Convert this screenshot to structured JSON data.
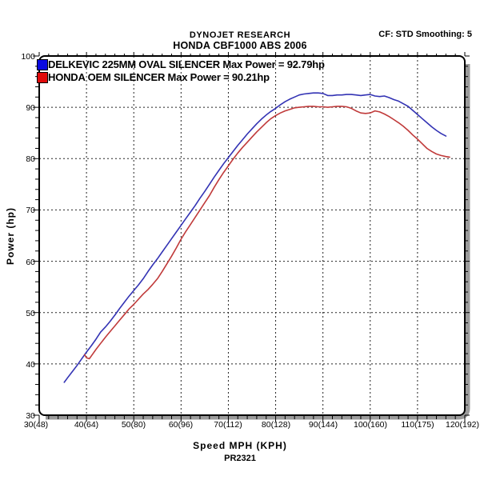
{
  "header": {
    "title_line1": "DYNOJET RESEARCH",
    "title_line2": "HONDA CBF1000 ABS 2006",
    "right_info": "CF: STD  Smoothing: 5"
  },
  "chart_data": {
    "type": "line",
    "title": "HONDA CBF1000 ABS 2006",
    "xlabel": "Speed MPH (KPH)",
    "ylabel": "Power (hp)",
    "annotation": "PR2321",
    "xlim": [
      30,
      120
    ],
    "ylim": [
      30,
      100
    ],
    "grid": "dashed lines at every major tick, minor ticks every 2 units on axes",
    "legend_position": "top-left inside plot",
    "x_tick_labels": [
      "30(48)",
      "40(64)",
      "50(80)",
      "60(96)",
      "70(112)",
      "80(128)",
      "90(144)",
      "100(160)",
      "110(175)",
      "120(192)"
    ],
    "y_tick_labels": [
      "100",
      "90",
      "80",
      "70",
      "60",
      "50",
      "40",
      "30"
    ],
    "series": [
      {
        "id": "delkevic-curve",
        "name": "DELKEVIC 225MM OVAL SILENCER",
        "legend_label": "DELKEVIC 225MM OVAL SILENCER Max Power = 92.79hp",
        "max_power_hp": 92.79,
        "color": "#3333b4",
        "swatch_color": "#0a0ae0",
        "points": [
          [
            35.3,
            36.4
          ],
          [
            36,
            37.3
          ],
          [
            37,
            38.5
          ],
          [
            38,
            39.7
          ],
          [
            39,
            41.0
          ],
          [
            40,
            42.3
          ],
          [
            41,
            43.5
          ],
          [
            42,
            44.8
          ],
          [
            43,
            46.2
          ],
          [
            44,
            47.2
          ],
          [
            45,
            48.3
          ],
          [
            46,
            49.5
          ],
          [
            47,
            50.8
          ],
          [
            48,
            52.0
          ],
          [
            49,
            53.2
          ],
          [
            50,
            54.3
          ],
          [
            51,
            55.4
          ],
          [
            52,
            56.6
          ],
          [
            53,
            58.0
          ],
          [
            54,
            59.3
          ],
          [
            55,
            60.5
          ],
          [
            56,
            61.8
          ],
          [
            57,
            63.1
          ],
          [
            58,
            64.4
          ],
          [
            59,
            65.7
          ],
          [
            60,
            67.0
          ],
          [
            61,
            68.3
          ],
          [
            62,
            69.6
          ],
          [
            63,
            70.9
          ],
          [
            64,
            72.3
          ],
          [
            65,
            73.6
          ],
          [
            66,
            75.0
          ],
          [
            67,
            76.4
          ],
          [
            68,
            77.7
          ],
          [
            69,
            79.0
          ],
          [
            70,
            80.2
          ],
          [
            71,
            81.4
          ],
          [
            72,
            82.6
          ],
          [
            73,
            83.7
          ],
          [
            74,
            84.8
          ],
          [
            75,
            85.8
          ],
          [
            76,
            86.8
          ],
          [
            77,
            87.7
          ],
          [
            78,
            88.5
          ],
          [
            79,
            89.2
          ],
          [
            80,
            89.8
          ],
          [
            81,
            90.5
          ],
          [
            82,
            91.1
          ],
          [
            83,
            91.6
          ],
          [
            84,
            92.0
          ],
          [
            85,
            92.4
          ],
          [
            86,
            92.6
          ],
          [
            87,
            92.7
          ],
          [
            88,
            92.8
          ],
          [
            89,
            92.8
          ],
          [
            90,
            92.7
          ],
          [
            91,
            92.3
          ],
          [
            92,
            92.3
          ],
          [
            93,
            92.4
          ],
          [
            94,
            92.4
          ],
          [
            95,
            92.5
          ],
          [
            96,
            92.5
          ],
          [
            97,
            92.4
          ],
          [
            98,
            92.3
          ],
          [
            99,
            92.4
          ],
          [
            100,
            92.5
          ],
          [
            101,
            92.2
          ],
          [
            102,
            92.1
          ],
          [
            103,
            92.2
          ],
          [
            104,
            91.9
          ],
          [
            105,
            91.5
          ],
          [
            106,
            91.2
          ],
          [
            107,
            90.7
          ],
          [
            108,
            90.2
          ],
          [
            109,
            89.4
          ],
          [
            110,
            88.6
          ],
          [
            111,
            87.8
          ],
          [
            112,
            87.0
          ],
          [
            113,
            86.2
          ],
          [
            114,
            85.5
          ],
          [
            115,
            84.9
          ],
          [
            116,
            84.4
          ]
        ]
      },
      {
        "id": "honda-oem-curve",
        "name": "HONDA OEM SILENCER",
        "legend_label": "HONDA OEM SILENCER Max Power = 90.21hp",
        "max_power_hp": 90.21,
        "color": "#c03a3a",
        "swatch_color": "#e00a0a",
        "points": [
          [
            39.6,
            41.8
          ],
          [
            40,
            41.2
          ],
          [
            40.6,
            41.0
          ],
          [
            41,
            41.5
          ],
          [
            42,
            42.8
          ],
          [
            43,
            44.0
          ],
          [
            44,
            45.2
          ],
          [
            45,
            46.3
          ],
          [
            46,
            47.4
          ],
          [
            47,
            48.5
          ],
          [
            48,
            49.6
          ],
          [
            49,
            50.7
          ],
          [
            50,
            51.6
          ],
          [
            51,
            52.6
          ],
          [
            52,
            53.6
          ],
          [
            53,
            54.5
          ],
          [
            54,
            55.5
          ],
          [
            55,
            56.6
          ],
          [
            56,
            58.0
          ],
          [
            57,
            59.5
          ],
          [
            58,
            61.0
          ],
          [
            59,
            62.6
          ],
          [
            60,
            64.3
          ],
          [
            61,
            65.8
          ],
          [
            62,
            67.2
          ],
          [
            63,
            68.6
          ],
          [
            64,
            70.0
          ],
          [
            65,
            71.4
          ],
          [
            66,
            72.8
          ],
          [
            67,
            74.4
          ],
          [
            68,
            75.9
          ],
          [
            69,
            77.3
          ],
          [
            70,
            78.6
          ],
          [
            71,
            79.9
          ],
          [
            72,
            81.1
          ],
          [
            73,
            82.2
          ],
          [
            74,
            83.2
          ],
          [
            75,
            84.2
          ],
          [
            76,
            85.2
          ],
          [
            77,
            86.1
          ],
          [
            78,
            87.0
          ],
          [
            79,
            87.8
          ],
          [
            80,
            88.4
          ],
          [
            81,
            88.9
          ],
          [
            82,
            89.3
          ],
          [
            83,
            89.6
          ],
          [
            84,
            89.9
          ],
          [
            85,
            90.0
          ],
          [
            86,
            90.1
          ],
          [
            87,
            90.2
          ],
          [
            88,
            90.2
          ],
          [
            89,
            90.1
          ],
          [
            90,
            90.1
          ],
          [
            91,
            90.0
          ],
          [
            92,
            90.1
          ],
          [
            93,
            90.2
          ],
          [
            94,
            90.2
          ],
          [
            95,
            90.1
          ],
          [
            96,
            89.8
          ],
          [
            97,
            89.3
          ],
          [
            98,
            88.9
          ],
          [
            99,
            88.8
          ],
          [
            100,
            88.9
          ],
          [
            101,
            89.3
          ],
          [
            102,
            89.1
          ],
          [
            103,
            88.7
          ],
          [
            104,
            88.2
          ],
          [
            105,
            87.6
          ],
          [
            106,
            87.0
          ],
          [
            107,
            86.3
          ],
          [
            108,
            85.5
          ],
          [
            109,
            84.6
          ],
          [
            110,
            83.8
          ],
          [
            111,
            82.9
          ],
          [
            112,
            82.0
          ],
          [
            113,
            81.4
          ],
          [
            114,
            80.9
          ],
          [
            115,
            80.6
          ],
          [
            116,
            80.4
          ],
          [
            116.8,
            80.3
          ]
        ]
      }
    ]
  }
}
